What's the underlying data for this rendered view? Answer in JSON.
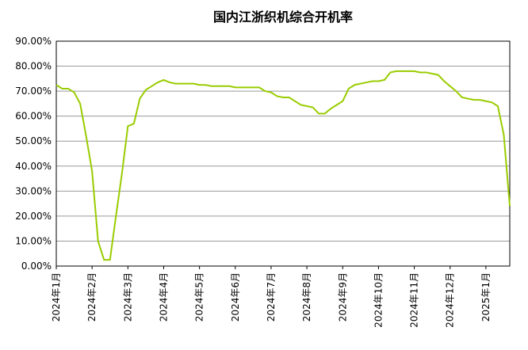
{
  "chart_data": {
    "type": "line",
    "title": "国内江浙织机综合开机率",
    "categories": [
      "2024年1月",
      null,
      null,
      null,
      null,
      null,
      "2024年2月",
      null,
      null,
      null,
      null,
      null,
      "2024年3月",
      null,
      null,
      null,
      null,
      null,
      "2024年4月",
      null,
      null,
      null,
      null,
      null,
      "2024年5月",
      null,
      null,
      null,
      null,
      null,
      "2024年6月",
      null,
      null,
      null,
      null,
      null,
      "2024年7月",
      null,
      null,
      null,
      null,
      null,
      "2024年8月",
      null,
      null,
      null,
      null,
      null,
      "2024年9月",
      null,
      null,
      null,
      null,
      null,
      "2024年10月",
      null,
      null,
      null,
      null,
      null,
      "2024年11月",
      null,
      null,
      null,
      null,
      null,
      "2024年12月",
      null,
      null,
      null,
      null,
      null,
      "2025年1月",
      null,
      null,
      null,
      null
    ],
    "series": [
      {
        "name": "国内江浙织机综合开机率",
        "color": "#99cc00",
        "values": [
          72.5,
          71,
          71,
          69.5,
          65,
          52,
          38,
          10,
          2.5,
          2.5,
          20,
          37,
          56,
          57,
          67,
          70.5,
          72,
          73.5,
          74.5,
          73.5,
          73,
          73,
          73,
          73,
          72.5,
          72.5,
          72,
          72,
          72,
          72,
          71.5,
          71.5,
          71.5,
          71.5,
          71.5,
          70,
          69.5,
          68,
          67.5,
          67.5,
          66,
          64.5,
          64,
          63.5,
          61,
          61,
          63,
          64.5,
          66,
          71,
          72.5,
          73,
          73.5,
          74,
          74,
          74.5,
          77.5,
          78,
          78,
          78,
          78,
          77.5,
          77.5,
          77,
          76.5,
          74,
          72,
          70,
          67.5,
          67,
          66.5,
          66.5,
          66,
          65.5,
          64,
          52.5,
          24
        ]
      }
    ],
    "ylim": [
      0,
      90
    ],
    "yticks": [
      {
        "value": 0,
        "label": "0.00%"
      },
      {
        "value": 10,
        "label": "10.00%"
      },
      {
        "value": 20,
        "label": "20.00%"
      },
      {
        "value": 30,
        "label": "30.00%"
      },
      {
        "value": 40,
        "label": "40.00%"
      },
      {
        "value": 50,
        "label": "50.00%"
      },
      {
        "value": 60,
        "label": "60.00%"
      },
      {
        "value": 70,
        "label": "70.00%"
      },
      {
        "value": 80,
        "label": "80.00%"
      },
      {
        "value": 90,
        "label": "90.00%"
      }
    ],
    "grid": true
  }
}
